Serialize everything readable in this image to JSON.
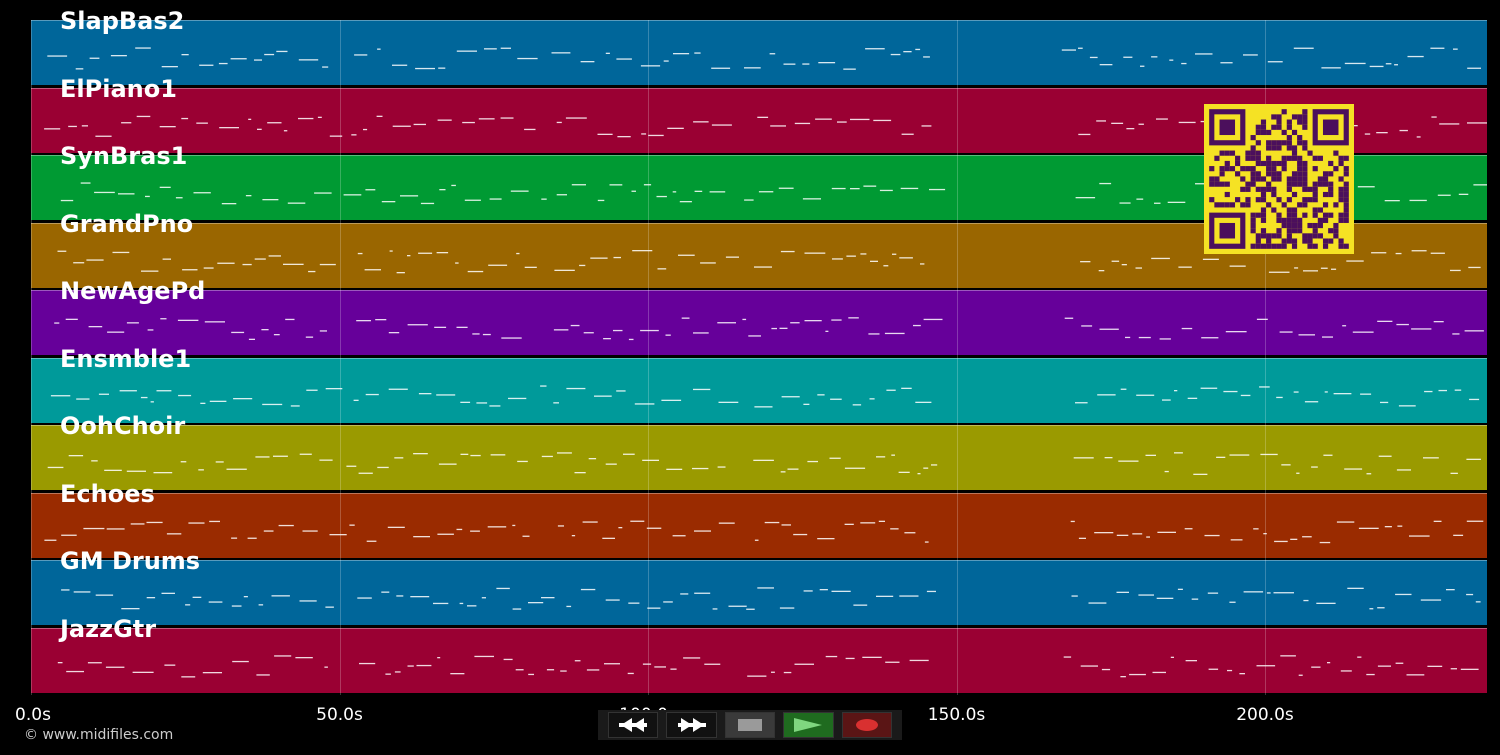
{
  "timeline": {
    "tick_labels": [
      "0.0s",
      "50.0s",
      "100.0s",
      "150.0s",
      "200.0s"
    ],
    "tick_seconds": [
      0,
      50,
      100,
      150,
      200
    ],
    "duration_seconds": 236
  },
  "tracks": [
    {
      "label": "SlapBas2",
      "color": "#00669a"
    },
    {
      "label": "ElPiano1",
      "color": "#9a0033"
    },
    {
      "label": "SynBras1",
      "color": "#009a33"
    },
    {
      "label": "GrandPno",
      "color": "#9a6600"
    },
    {
      "label": "NewAgePd",
      "color": "#66009a"
    },
    {
      "label": "Ensmble1",
      "color": "#009a9a"
    },
    {
      "label": "OohChoir",
      "color": "#9a9a00"
    },
    {
      "label": "Echoes",
      "color": "#9a2b00"
    },
    {
      "label": "GM Drums",
      "color": "#00669a"
    },
    {
      "label": "JazzGtr",
      "color": "#9a0033"
    }
  ],
  "copyright": "© www.midifiles.com",
  "transport": {
    "rewind_icon": "rewind-icon",
    "forward_icon": "fast-forward-icon",
    "stop_icon": "stop-icon",
    "play_icon": "play-icon",
    "record_icon": "record-icon"
  },
  "qr_colors": {
    "bg": "#f5e224",
    "fg": "#4b0f5c"
  }
}
